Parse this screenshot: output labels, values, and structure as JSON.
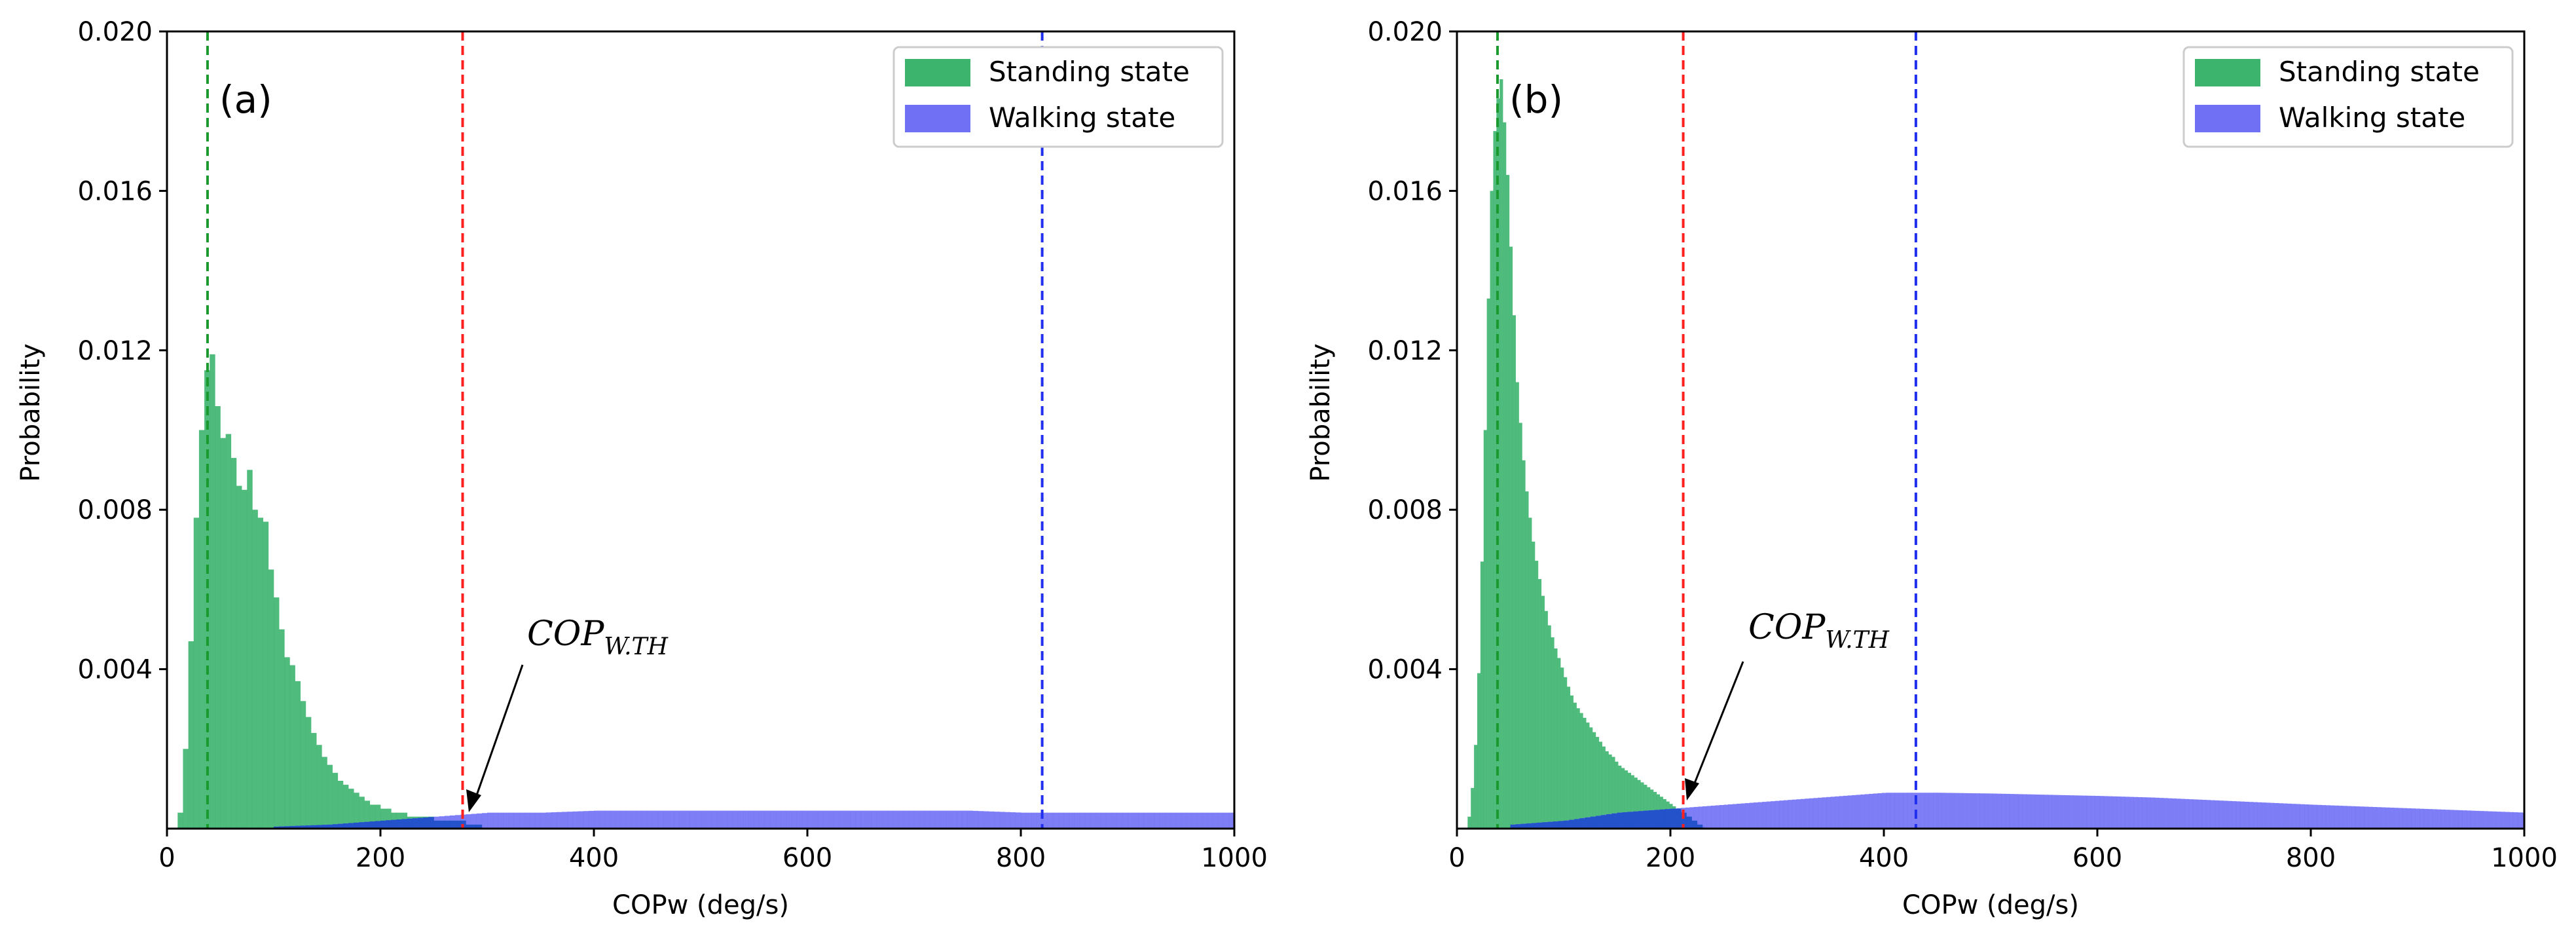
{
  "chart_data": [
    {
      "type": "histogram",
      "panel_label": "(a)",
      "xlabel": "COPw (deg/s)",
      "ylabel": "Probability",
      "xlim": [
        0,
        1000
      ],
      "ylim": [
        0,
        0.02
      ],
      "xticks": [
        0,
        200,
        400,
        600,
        800,
        1000
      ],
      "xtick_labels": [
        "0",
        "200",
        "400",
        "600",
        "800",
        "1000"
      ],
      "yticks": [
        0.004,
        0.008,
        0.012,
        0.016,
        0.02
      ],
      "ytick_labels": [
        "0.004",
        "0.008",
        "0.012",
        "0.016",
        "0.020"
      ],
      "legend_position": "top-right",
      "series": [
        {
          "name": "Standing state",
          "color": "#3cb46e",
          "bin_width": 5,
          "x": [
            10,
            15,
            20,
            25,
            30,
            35,
            40,
            45,
            50,
            55,
            60,
            65,
            70,
            75,
            80,
            85,
            90,
            95,
            100,
            105,
            110,
            115,
            120,
            125,
            130,
            135,
            140,
            145,
            150,
            155,
            160,
            165,
            170,
            175,
            180,
            185,
            190,
            195,
            200,
            205,
            210,
            215,
            220,
            225,
            230,
            235,
            240,
            245,
            250,
            255,
            260,
            265,
            270,
            275,
            280,
            285,
            290,
            295
          ],
          "values": [
            0.0004,
            0.002,
            0.0047,
            0.0078,
            0.01,
            0.0115,
            0.0119,
            0.0106,
            0.0098,
            0.0099,
            0.0093,
            0.0086,
            0.0085,
            0.009,
            0.008,
            0.0078,
            0.0077,
            0.0065,
            0.0058,
            0.005,
            0.0043,
            0.0041,
            0.0037,
            0.0032,
            0.0028,
            0.0024,
            0.0021,
            0.0018,
            0.0016,
            0.0014,
            0.0012,
            0.0011,
            0.001,
            0.0009,
            0.0008,
            0.0007,
            0.0006,
            0.0006,
            0.0005,
            0.0005,
            0.0004,
            0.0004,
            0.0004,
            0.0003,
            0.0003,
            0.0003,
            0.0003,
            0.0003,
            0.0002,
            0.0002,
            0.0002,
            0.0002,
            0.0002,
            0.0002,
            0.0001,
            0.0001,
            0.0001,
            0.0001
          ]
        },
        {
          "name": "Walking state",
          "color": "#7070f5",
          "bin_width": 5,
          "x": [
            100,
            150,
            200,
            250,
            300,
            350,
            400,
            450,
            500,
            550,
            600,
            650,
            700,
            750,
            800,
            850,
            900,
            950,
            1000
          ],
          "values": [
            5e-05,
            0.0001,
            0.0002,
            0.0003,
            0.0004,
            0.0004,
            0.00045,
            0.00045,
            0.00045,
            0.00045,
            0.00045,
            0.00045,
            0.00045,
            0.00045,
            0.0004,
            0.0004,
            0.0004,
            0.0004,
            0.0004
          ]
        }
      ],
      "reference_lines": [
        {
          "x": 38,
          "color": "#1a9a2e"
        },
        {
          "x": 277,
          "color": "#ff2020"
        },
        {
          "x": 820,
          "color": "#2030ee"
        }
      ],
      "annotation": {
        "text": "COP",
        "subscript": "W.TH",
        "arrow_to": [
          277,
          0.0002
        ],
        "text_at": [
          340,
          0.0045
        ]
      }
    },
    {
      "type": "histogram",
      "panel_label": "(b)",
      "xlabel": "COPw (deg/s)",
      "ylabel": "Probability",
      "xlim": [
        0,
        1000
      ],
      "ylim": [
        0,
        0.02
      ],
      "xticks": [
        0,
        200,
        400,
        600,
        800,
        1000
      ],
      "xtick_labels": [
        "0",
        "200",
        "400",
        "600",
        "800",
        "1000"
      ],
      "yticks": [
        0.004,
        0.008,
        0.012,
        0.016,
        0.02
      ],
      "ytick_labels": [
        "0.004",
        "0.008",
        "0.012",
        "0.016",
        "0.020"
      ],
      "legend_position": "top-right",
      "series": [
        {
          "name": "Standing state",
          "color": "#3cb46e",
          "bin_width": 3,
          "x": [
            10,
            15,
            20,
            25,
            30,
            35,
            40,
            45,
            50,
            55,
            60,
            65,
            70,
            75,
            80,
            85,
            90,
            95,
            100,
            105,
            110,
            115,
            120,
            125,
            130,
            135,
            140,
            145,
            150,
            155,
            160,
            165,
            170,
            175,
            180,
            185,
            190,
            195,
            200,
            205,
            210,
            215,
            220,
            225,
            230
          ],
          "values": [
            0.0003,
            0.0015,
            0.0045,
            0.01,
            0.0155,
            0.018,
            0.0188,
            0.017,
            0.014,
            0.0112,
            0.0095,
            0.0082,
            0.0072,
            0.0064,
            0.0057,
            0.0051,
            0.0046,
            0.0042,
            0.0038,
            0.0034,
            0.0031,
            0.0029,
            0.0027,
            0.0025,
            0.0023,
            0.0021,
            0.0019,
            0.0018,
            0.0016,
            0.0015,
            0.0014,
            0.0013,
            0.0012,
            0.0011,
            0.001,
            0.0009,
            0.0008,
            0.0007,
            0.0006,
            0.0005,
            0.0004,
            0.0003,
            0.0002,
            0.0001,
            5e-05
          ]
        },
        {
          "name": "Walking state",
          "color": "#7070f5",
          "bin_width": 4,
          "x": [
            50,
            100,
            150,
            200,
            250,
            300,
            350,
            400,
            450,
            500,
            550,
            600,
            650,
            700,
            750,
            800,
            850,
            900,
            950,
            1000
          ],
          "values": [
            0.0001,
            0.0002,
            0.0004,
            0.0005,
            0.0006,
            0.0007,
            0.0008,
            0.0009,
            0.0009,
            0.00088,
            0.00085,
            0.00082,
            0.00078,
            0.00072,
            0.00066,
            0.0006,
            0.00055,
            0.0005,
            0.00045,
            0.0004
          ]
        }
      ],
      "reference_lines": [
        {
          "x": 38,
          "color": "#1a9a2e"
        },
        {
          "x": 212,
          "color": "#ff2020"
        },
        {
          "x": 430,
          "color": "#2030ee"
        }
      ],
      "annotation": {
        "text": "COP",
        "subscript": "W.TH",
        "arrow_to": [
          212,
          0.0005
        ],
        "text_at": [
          275,
          0.0046
        ]
      }
    }
  ]
}
